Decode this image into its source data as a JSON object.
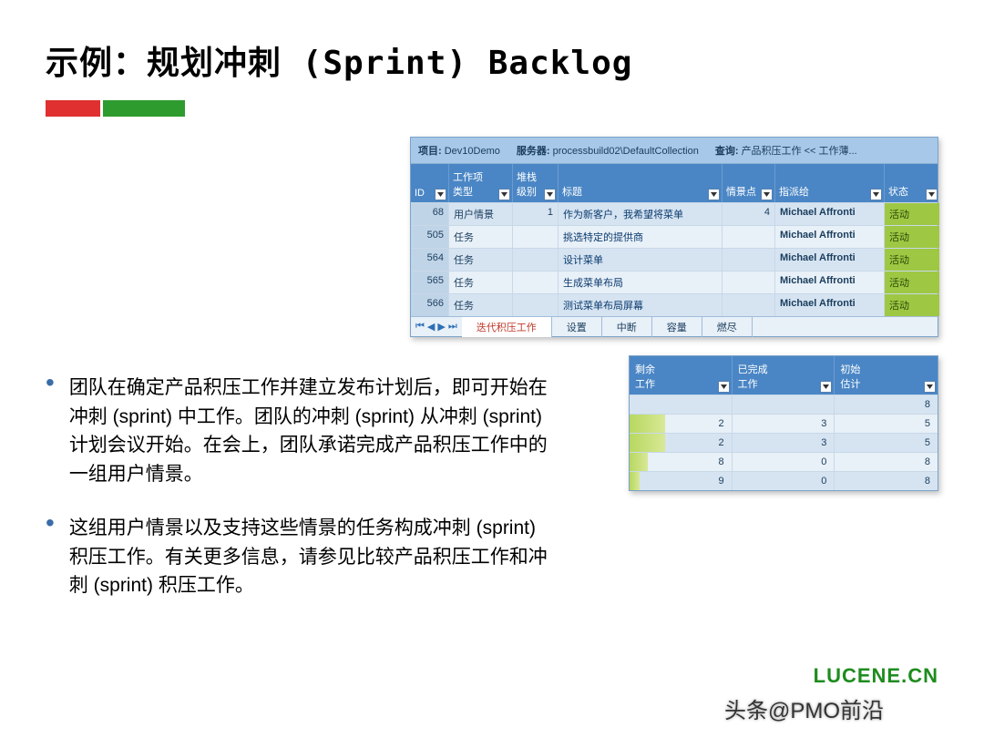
{
  "title": "示例：规划冲刺 (Sprint) Backlog",
  "mainTable": {
    "projectLabel": "项目:",
    "projectValue": "Dev10Demo",
    "serverLabel": "服务器:",
    "serverValue": "processbuild02\\DefaultCollection",
    "queryLabel": "查询:",
    "queryValue": "产品积压工作 << 工作薄...",
    "headers": {
      "id": "ID",
      "type1": "工作项",
      "type2": "类型",
      "stack1": "堆栈",
      "stack2": "级别",
      "title": "标题",
      "points": "情景点",
      "assigned": "指派给",
      "status": "状态"
    },
    "rows": [
      {
        "id": "68",
        "type": "用户情景",
        "stack": "1",
        "title": "作为新客户，我希望将菜单",
        "points": "4",
        "assigned": "Michael Affronti",
        "status": "活动"
      },
      {
        "id": "505",
        "type": "任务",
        "stack": "",
        "title": "挑选特定的提供商",
        "points": "",
        "assigned": "Michael Affronti",
        "status": "活动"
      },
      {
        "id": "564",
        "type": "任务",
        "stack": "",
        "title": "设计菜单",
        "points": "",
        "assigned": "Michael Affronti",
        "status": "活动"
      },
      {
        "id": "565",
        "type": "任务",
        "stack": "",
        "title": "生成菜单布局",
        "points": "",
        "assigned": "Michael Affronti",
        "status": "活动"
      },
      {
        "id": "566",
        "type": "任务",
        "stack": "",
        "title": "测试菜单布局屏幕",
        "points": "",
        "assigned": "Michael Affronti",
        "status": "活动"
      }
    ],
    "tabs": {
      "active": "迭代积压工作",
      "t2": "设置",
      "t3": "中断",
      "t4": "容量",
      "t5": "燃尽"
    }
  },
  "smallTable": {
    "headers": {
      "remain1": "剩余",
      "remain2": "工作",
      "done1": "已完成",
      "done2": "工作",
      "init1": "初始",
      "init2": "估计"
    },
    "rows": [
      {
        "remain": "",
        "done": "",
        "init": "8",
        "prog": 0
      },
      {
        "remain": "2",
        "done": "3",
        "init": "5",
        "prog": 35
      },
      {
        "remain": "2",
        "done": "3",
        "init": "5",
        "prog": 35
      },
      {
        "remain": "8",
        "done": "0",
        "init": "8",
        "prog": 18
      },
      {
        "remain": "9",
        "done": "0",
        "init": "8",
        "prog": 10
      }
    ]
  },
  "bullets": [
    "团队在确定产品积压工作并建立发布计划后，即可开始在冲刺 (sprint) 中工作。团队的冲刺 (sprint) 从冲刺 (sprint) 计划会议开始。在会上，团队承诺完成产品积压工作中的一组用户情景。",
    "这组用户情景以及支持这些情景的任务构成冲刺 (sprint) 积压工作。有关更多信息，请参见比较产品积压工作和冲刺 (sprint) 积压工作。"
  ],
  "logo": "LUCENE.CN",
  "credit": "头条@PMO前沿",
  "colors": {
    "accentRed": "#e03030",
    "accentGreen": "#2e9b2e",
    "tableHeader": "#4a86c5",
    "statusGreen": "#9ec843",
    "bulletDot": "#3a6da8",
    "logoGreen": "#1e8c1e"
  }
}
